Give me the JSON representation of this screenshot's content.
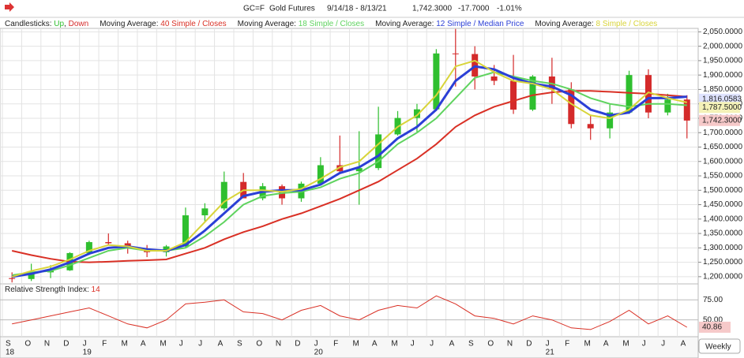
{
  "header": {
    "symbol": "GC=F",
    "name": "Gold Futures",
    "range": "9/14/18 - 8/13/21",
    "last": "1,742.3000",
    "change": "-17.7000",
    "change_pct": "-1.01%"
  },
  "interval_button": "Weekly",
  "chart_data": [
    {
      "type": "candlestick",
      "legend": [
        {
          "label": "Candlesticks: ",
          "up": "Up",
          "sep": ", ",
          "down": "Down"
        },
        {
          "label": "Moving Average: ",
          "params": "40 Simple / Closes"
        },
        {
          "label": "Moving Average: ",
          "params": "18 Simple / Closes"
        },
        {
          "label": "Moving Average: ",
          "params": "12 Simple / Median Price"
        },
        {
          "label": "Moving Average: ",
          "params": "8 Simple / Closes"
        }
      ],
      "up_color": "#2fbf2f",
      "down_color": "#d42a2a",
      "categories": [
        "S",
        "O",
        "N",
        "D",
        "J",
        "F",
        "M",
        "A",
        "M",
        "J",
        "J",
        "A",
        "S",
        "O",
        "N",
        "D",
        "J",
        "F",
        "M",
        "A",
        "M",
        "J",
        "J",
        "A",
        "S",
        "O",
        "N",
        "D",
        "J",
        "F",
        "M",
        "A",
        "M",
        "J",
        "J",
        "A"
      ],
      "years": [
        "18",
        null,
        null,
        null,
        "19",
        null,
        null,
        null,
        null,
        null,
        null,
        null,
        null,
        null,
        null,
        null,
        "20",
        null,
        null,
        null,
        null,
        null,
        null,
        null,
        null,
        null,
        null,
        null,
        "21",
        null,
        null,
        null,
        null,
        null,
        null,
        null
      ],
      "open": [
        1195,
        1192,
        1215,
        1222,
        1282,
        1320,
        1316,
        1298,
        1285,
        1305,
        1413,
        1437,
        1529,
        1472,
        1514,
        1472,
        1523,
        1587,
        1566,
        1577,
        1694,
        1751,
        1781,
        1975,
        1973,
        1895,
        1880,
        1780,
        1895,
        1850,
        1730,
        1715,
        1770,
        1900,
        1770,
        1815
      ],
      "high": [
        1215,
        1245,
        1240,
        1285,
        1325,
        1350,
        1325,
        1310,
        1310,
        1440,
        1455,
        1565,
        1560,
        1525,
        1520,
        1530,
        1615,
        1690,
        1705,
        1790,
        1775,
        1800,
        1990,
        2060,
        2000,
        1935,
        1970,
        1900,
        1960,
        1875,
        1760,
        1800,
        1915,
        1920,
        1835,
        1830
      ],
      "low": [
        1180,
        1185,
        1195,
        1220,
        1275,
        1310,
        1280,
        1268,
        1270,
        1300,
        1390,
        1430,
        1475,
        1465,
        1450,
        1460,
        1520,
        1560,
        1450,
        1570,
        1690,
        1700,
        1775,
        1860,
        1850,
        1865,
        1765,
        1775,
        1800,
        1715,
        1675,
        1680,
        1765,
        1750,
        1760,
        1680
      ],
      "close": [
        1192,
        1215,
        1222,
        1282,
        1320,
        1316,
        1298,
        1285,
        1305,
        1413,
        1437,
        1529,
        1472,
        1514,
        1472,
        1523,
        1587,
        1566,
        1577,
        1694,
        1751,
        1781,
        1975,
        1973,
        1895,
        1880,
        1780,
        1895,
        1850,
        1730,
        1715,
        1770,
        1900,
        1770,
        1815,
        1742
      ],
      "series": [
        {
          "name": "40 Simple / Closes",
          "color": "#d93025",
          "values": [
            1290,
            1275,
            1262,
            1252,
            1250,
            1252,
            1255,
            1257,
            1260,
            1280,
            1300,
            1330,
            1355,
            1375,
            1400,
            1420,
            1445,
            1470,
            1500,
            1530,
            1570,
            1610,
            1660,
            1720,
            1760,
            1790,
            1810,
            1830,
            1840,
            1845,
            1845,
            1842,
            1838,
            1835,
            1830,
            1825
          ]
        },
        {
          "name": "18 Simple / Closes",
          "color": "#5fd35f",
          "values": [
            1205,
            1215,
            1220,
            1240,
            1265,
            1290,
            1300,
            1290,
            1290,
            1300,
            1340,
            1390,
            1450,
            1480,
            1490,
            1495,
            1510,
            1540,
            1560,
            1600,
            1660,
            1700,
            1750,
            1820,
            1890,
            1910,
            1895,
            1880,
            1870,
            1850,
            1820,
            1800,
            1790,
            1800,
            1800,
            1795
          ]
        },
        {
          "name": "12 Simple / Median Price",
          "color": "#2b3fd6",
          "values": [
            1200,
            1210,
            1225,
            1250,
            1280,
            1300,
            1305,
            1295,
            1290,
            1310,
            1360,
            1420,
            1480,
            1495,
            1500,
            1500,
            1520,
            1560,
            1580,
            1620,
            1680,
            1720,
            1780,
            1880,
            1930,
            1920,
            1890,
            1870,
            1860,
            1830,
            1780,
            1760,
            1770,
            1820,
            1820,
            1825
          ]
        },
        {
          "name": "8 Simple / Closes",
          "color": "#d8d43a",
          "values": [
            1200,
            1220,
            1235,
            1260,
            1290,
            1310,
            1305,
            1290,
            1290,
            1320,
            1390,
            1460,
            1500,
            1500,
            1495,
            1505,
            1540,
            1580,
            1600,
            1660,
            1720,
            1760,
            1830,
            1930,
            1950,
            1910,
            1880,
            1870,
            1850,
            1800,
            1760,
            1750,
            1780,
            1840,
            1820,
            1805
          ]
        }
      ],
      "current_labels": [
        {
          "label": "1,816.0583",
          "value": 1816.0583,
          "color": "#2b3fd6",
          "bg": "#dfe3ff"
        },
        {
          "label": "1,787.5000",
          "value": 1787.5,
          "color": "#555",
          "bg": "#f4f2b8"
        },
        {
          "label": "1,742.3000",
          "value": 1742.3,
          "color": "#555",
          "bg": "#f6c9c9"
        }
      ],
      "ylim": [
        1175,
        2062
      ],
      "yticks": [
        {
          "value": 1200,
          "label": "1,200.0000"
        },
        {
          "value": 1250,
          "label": "1,250.0000"
        },
        {
          "value": 1300,
          "label": "1,300.0000"
        },
        {
          "value": 1350,
          "label": "1,350.0000"
        },
        {
          "value": 1400,
          "label": "1,400.0000"
        },
        {
          "value": 1450,
          "label": "1,450.0000"
        },
        {
          "value": 1500,
          "label": "1,500.0000"
        },
        {
          "value": 1550,
          "label": "1,550.0000"
        },
        {
          "value": 1600,
          "label": "1,600.0000"
        },
        {
          "value": 1650,
          "label": "1,650.0000"
        },
        {
          "value": 1700,
          "label": "1,700.0000"
        },
        {
          "value": 1750,
          "label": "1,750.0000"
        },
        {
          "value": 1800,
          "label": "1,800.0000"
        },
        {
          "value": 1850,
          "label": "1,850.0000"
        },
        {
          "value": 1900,
          "label": "1,900.0000"
        },
        {
          "value": 1950,
          "label": "1,950.0000"
        },
        {
          "value": 2000,
          "label": "2,000.0000"
        },
        {
          "value": 2050,
          "label": "2,050.0000"
        }
      ],
      "grid": true
    },
    {
      "type": "line",
      "title": "Relative Strength Index: ",
      "period": "14",
      "series": [
        {
          "name": "RSI",
          "color": "#d93025",
          "values": [
            45,
            50,
            55,
            60,
            65,
            55,
            45,
            40,
            50,
            70,
            72,
            75,
            60,
            58,
            50,
            62,
            68,
            55,
            50,
            62,
            68,
            65,
            80,
            70,
            55,
            52,
            45,
            55,
            50,
            40,
            38,
            48,
            62,
            45,
            55,
            40.86
          ]
        }
      ],
      "last_label": {
        "label": "40.86",
        "value": 40.86
      },
      "ylim": [
        29,
        95
      ],
      "yticks": [
        {
          "value": 50,
          "label": "50.00"
        },
        {
          "value": 75,
          "label": "75.00"
        }
      ],
      "grid": true
    }
  ]
}
